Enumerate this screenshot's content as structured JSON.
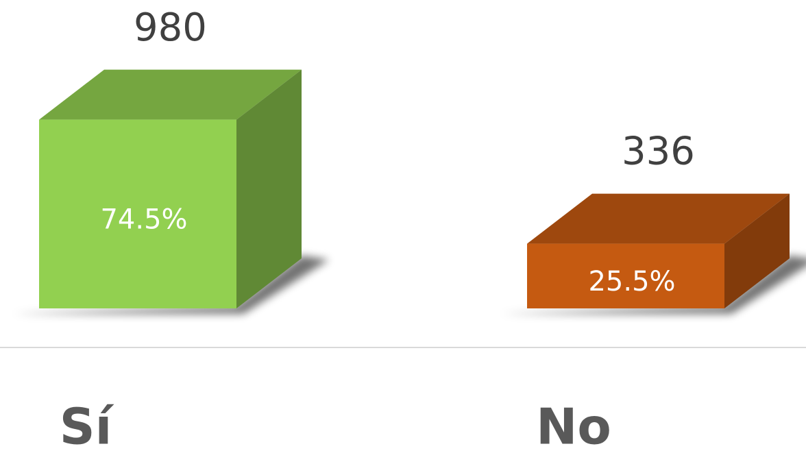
{
  "chart_data": {
    "type": "bar3d",
    "categories": [
      "Sí",
      "No"
    ],
    "values": [
      980,
      336
    ],
    "percent_labels": [
      "74.5%",
      "25.5%"
    ],
    "colors": [
      "#92d050",
      "#c55a11"
    ],
    "ylim": [
      0,
      1000
    ]
  }
}
